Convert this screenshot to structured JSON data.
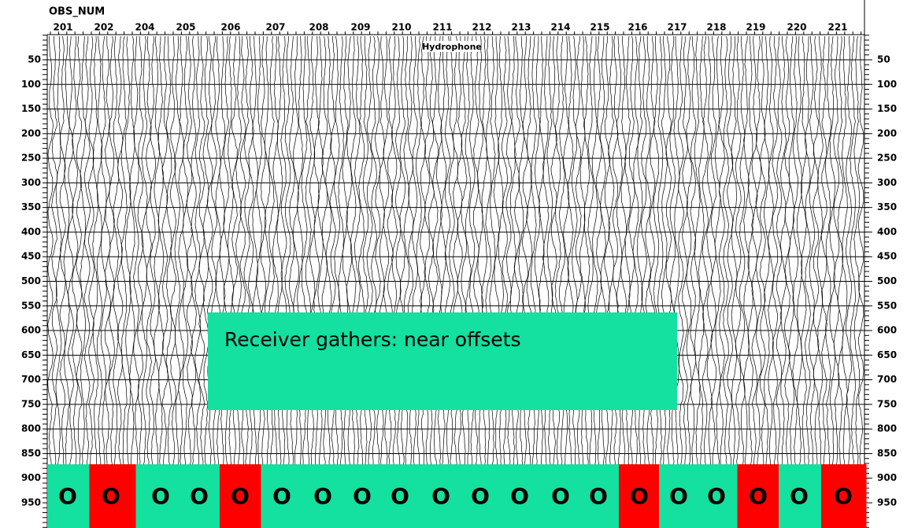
{
  "header": {
    "title": "OBS_NUM"
  },
  "stations": [
    "201",
    "202",
    "204",
    "205",
    "206",
    "207",
    "208",
    "209",
    "210",
    "211",
    "212",
    "213",
    "214",
    "215",
    "216",
    "217",
    "218",
    "219",
    "220",
    "221"
  ],
  "component_label": "Hydrophone",
  "time_axis": {
    "ticks": [
      50,
      100,
      150,
      200,
      250,
      300,
      350,
      400,
      450,
      500,
      550,
      600,
      650,
      700,
      750,
      800,
      850,
      900,
      950
    ]
  },
  "annotation": "Receiver gathers: near offsets",
  "markers": [
    {
      "text": "O",
      "color": "#14e0a0"
    },
    {
      "text": "O",
      "color": "#ff0000"
    },
    {
      "text": "O",
      "color": "#14e0a0"
    },
    {
      "text": "O",
      "color": "#14e0a0"
    },
    {
      "text": "O",
      "color": "#ff0000"
    },
    {
      "text": "O",
      "color": "#14e0a0"
    },
    {
      "text": "O",
      "color": "#14e0a0"
    },
    {
      "text": "O",
      "color": "#14e0a0"
    },
    {
      "text": "O",
      "color": "#14e0a0"
    },
    {
      "text": "O",
      "color": "#14e0a0"
    },
    {
      "text": "O",
      "color": "#14e0a0"
    },
    {
      "text": "O",
      "color": "#14e0a0"
    },
    {
      "text": "O",
      "color": "#14e0a0"
    },
    {
      "text": "O",
      "color": "#14e0a0"
    },
    {
      "text": "O",
      "color": "#ff0000"
    },
    {
      "text": "O",
      "color": "#14e0a0"
    },
    {
      "text": "O",
      "color": "#14e0a0"
    },
    {
      "text": "O",
      "color": "#ff0000"
    },
    {
      "text": "O",
      "color": "#14e0a0"
    },
    {
      "text": "O",
      "color": "#ff0000"
    }
  ]
}
